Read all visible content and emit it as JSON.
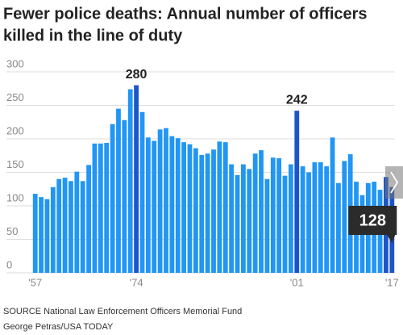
{
  "chart_data": {
    "type": "bar",
    "title": [
      "Fewer police deaths: Annual number of officers",
      "killed in the line of duty"
    ],
    "categories": [
      "'57",
      null,
      null,
      null,
      null,
      null,
      null,
      null,
      null,
      null,
      null,
      null,
      null,
      null,
      null,
      null,
      null,
      "'74",
      null,
      null,
      null,
      null,
      null,
      null,
      null,
      null,
      null,
      null,
      null,
      null,
      null,
      null,
      null,
      null,
      null,
      null,
      null,
      null,
      null,
      null,
      null,
      null,
      null,
      null,
      "'01",
      null,
      null,
      null,
      null,
      null,
      null,
      null,
      null,
      null,
      null,
      null,
      null,
      null,
      null,
      null,
      "'17"
    ],
    "values": [
      118,
      113,
      110,
      128,
      140,
      142,
      137,
      151,
      137,
      161,
      193,
      193,
      194,
      222,
      245,
      228,
      274,
      280,
      240,
      202,
      197,
      214,
      216,
      204,
      201,
      195,
      192,
      186,
      176,
      178,
      184,
      196,
      195,
      162,
      146,
      162,
      155,
      178,
      183,
      140,
      172,
      171,
      145,
      162,
      242,
      159,
      150,
      165,
      165,
      159,
      202,
      134,
      167,
      177,
      136,
      116,
      134,
      136,
      124,
      143,
      128
    ],
    "value_labels": [
      null,
      null,
      null,
      null,
      null,
      null,
      null,
      null,
      null,
      null,
      null,
      null,
      null,
      null,
      null,
      null,
      null,
      "280",
      null,
      null,
      null,
      null,
      null,
      null,
      null,
      null,
      null,
      null,
      null,
      null,
      null,
      null,
      null,
      null,
      null,
      null,
      null,
      null,
      null,
      null,
      null,
      null,
      null,
      null,
      "242",
      null,
      null,
      null,
      null,
      null,
      null,
      null,
      null,
      null,
      null,
      null,
      null,
      null,
      null,
      null,
      "128"
    ],
    "colors": [
      "#2196f3",
      "#2196f3",
      "#2196f3",
      "#2196f3",
      "#2196f3",
      "#2196f3",
      "#2196f3",
      "#2196f3",
      "#2196f3",
      "#2196f3",
      "#2196f3",
      "#2196f3",
      "#2196f3",
      "#2196f3",
      "#2196f3",
      "#2196f3",
      "#2196f3",
      "#1b55c6",
      "#2196f3",
      "#2196f3",
      "#2196f3",
      "#2196f3",
      "#2196f3",
      "#2196f3",
      "#2196f3",
      "#2196f3",
      "#2196f3",
      "#2196f3",
      "#2196f3",
      "#2196f3",
      "#2196f3",
      "#2196f3",
      "#2196f3",
      "#2196f3",
      "#2196f3",
      "#2196f3",
      "#2196f3",
      "#2196f3",
      "#2196f3",
      "#2196f3",
      "#2196f3",
      "#2196f3",
      "#2196f3",
      "#2196f3",
      "#1b55c6",
      "#2196f3",
      "#2196f3",
      "#2196f3",
      "#2196f3",
      "#2196f3",
      "#2196f3",
      "#2196f3",
      "#2196f3",
      "#2196f3",
      "#2196f3",
      "#2196f3",
      "#2196f3",
      "#2196f3",
      "#2196f3",
      "#1b55c6",
      "#1b55c6"
    ],
    "ylim": [
      0,
      300
    ],
    "yticks": [
      0,
      50,
      100,
      150,
      200,
      250,
      300
    ],
    "grid": true,
    "source": "SOURCE National Law Enforcement Officers Memorial Fund",
    "credit": "George Petras/USA TODAY"
  }
}
